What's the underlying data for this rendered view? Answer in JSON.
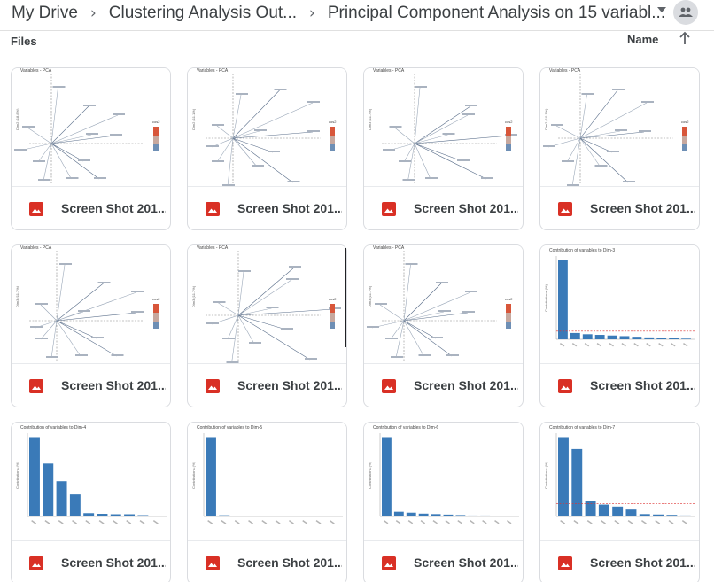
{
  "breadcrumb": {
    "root": "My Drive",
    "folder": "Clustering Analysis Out...",
    "current": "Principal Component Analysis on 15 variabl..."
  },
  "toolbar": {
    "files_label": "Files",
    "sort_label": "Name"
  },
  "icons": {
    "separator": "chevron-right-icon",
    "dropdown": "caret-down-icon",
    "shared": "people-icon",
    "sort": "arrow-up-icon",
    "file": "image-file-icon"
  },
  "colors": {
    "image_icon": "#d93025",
    "bar": "#3a7ab8"
  },
  "files": [
    {
      "name": "Screen Shot 201...",
      "thumb": {
        "kind": "pca",
        "title": "Variables - PCA",
        "ylabel": "Dim2 (18.8%)"
      }
    },
    {
      "name": "Screen Shot 201...",
      "thumb": {
        "kind": "pca",
        "title": "Variables - PCA",
        "ylabel": "Dim2 (11.1%)"
      }
    },
    {
      "name": "Screen Shot 201...",
      "thumb": {
        "kind": "pca",
        "title": "Variables - PCA",
        "ylabel": "Dim3 (11.7%)"
      }
    },
    {
      "name": "Screen Shot 201...",
      "thumb": {
        "kind": "pca",
        "title": "Variables - PCA",
        "ylabel": "Dim2 (10.1%)"
      }
    },
    {
      "name": "Screen Shot 201...",
      "thumb": {
        "kind": "pca",
        "title": "Variables - PCA",
        "ylabel": "Dim3 (11.7%)"
      }
    },
    {
      "name": "Screen Shot 201...",
      "thumb": {
        "kind": "pca",
        "title": "Variables - PCA",
        "ylabel": "Dim3 (11.7%)"
      }
    },
    {
      "name": "Screen Shot 201...",
      "thumb": {
        "kind": "pca",
        "title": "Variables - PCA",
        "ylabel": "Dim3 (11.7%)"
      }
    },
    {
      "name": "Screen Shot 201...",
      "thumb": {
        "kind": "bar",
        "title": "Contribution of variables to Dim-3",
        "ylabel": "Contributions (%)",
        "values": [
          63,
          5,
          4,
          3.5,
          3,
          2.5,
          2,
          1.5,
          1,
          0.8,
          0.5
        ],
        "ref": 6.5
      }
    },
    {
      "name": "Screen Shot 201...",
      "thumb": {
        "kind": "bar",
        "title": "Contribution of variables to Dim-4",
        "ylabel": "Contributions (%)",
        "values": [
          36,
          24,
          16,
          10,
          1.5,
          1.2,
          1,
          1,
          0.6,
          0.3
        ],
        "ref": 7
      }
    },
    {
      "name": "Screen Shot 201...",
      "thumb": {
        "kind": "bar",
        "title": "Contribution of variables to Dim-5",
        "ylabel": "Contributions (%)",
        "values": [
          98,
          1.5,
          0.8,
          0.5,
          0.4,
          0.3,
          0.3,
          0.2,
          0.2,
          0.1
        ],
        "ref": 0
      }
    },
    {
      "name": "Screen Shot 201...",
      "thumb": {
        "kind": "bar",
        "title": "Contribution of variables to Dim-6",
        "ylabel": "Contributions (%)",
        "values": [
          84,
          5,
          4,
          3,
          2.5,
          2,
          1.5,
          1,
          1,
          0.5,
          0.3
        ],
        "ref": 0
      }
    },
    {
      "name": "Screen Shot 201...",
      "thumb": {
        "kind": "bar",
        "title": "Contribution of variables to Dim-7",
        "ylabel": "Contributions (%)",
        "values": [
          40,
          34,
          8,
          6,
          5,
          3.5,
          1.2,
          1,
          0.8,
          0.5
        ],
        "ref": 6.5
      }
    }
  ]
}
